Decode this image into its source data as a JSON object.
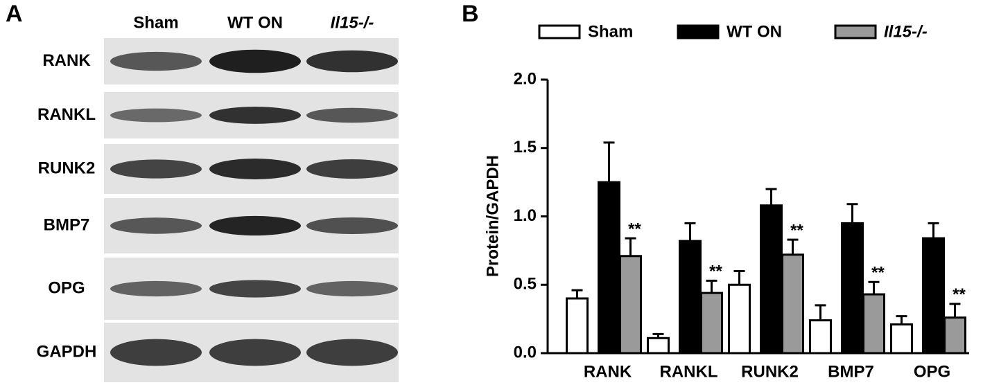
{
  "blot": {
    "panel_label": "A",
    "lanes": [
      "Sham",
      "WT ON",
      "Il15-/-"
    ],
    "rows": [
      "RANK",
      "RANKL",
      "RUNK2",
      "BMP7",
      "OPG",
      "GAPDH"
    ]
  },
  "chart_data": {
    "type": "bar",
    "panel_label": "B",
    "y_label": "Protein/GAPDH",
    "categories": [
      "RANK",
      "RANKL",
      "RUNK2",
      "BMP7",
      "OPG"
    ],
    "series": [
      {
        "name": "Sham",
        "color": "#ffffff",
        "values": [
          0.4,
          0.11,
          0.5,
          0.24,
          0.21
        ],
        "errors": [
          0.06,
          0.03,
          0.1,
          0.11,
          0.06
        ]
      },
      {
        "name": "WT ON",
        "color": "#000000",
        "values": [
          1.25,
          0.82,
          1.08,
          0.95,
          0.84
        ],
        "errors": [
          0.29,
          0.13,
          0.12,
          0.14,
          0.11
        ]
      },
      {
        "name": "Il15-/-",
        "color": "#9a9a9a",
        "values": [
          0.71,
          0.44,
          0.72,
          0.43,
          0.26
        ],
        "errors": [
          0.13,
          0.09,
          0.11,
          0.09,
          0.1
        ]
      }
    ],
    "significance": [
      "**",
      "**",
      "**",
      "**",
      "**"
    ],
    "ylim": [
      0,
      2.0
    ],
    "yticks": [
      {
        "value": 0,
        "label": "0.0"
      },
      {
        "value": 0.5,
        "label": "0.5"
      },
      {
        "value": 1.0,
        "label": "1.0"
      },
      {
        "value": 1.5,
        "label": "1.5"
      },
      {
        "value": 2.0,
        "label": "2.0"
      }
    ]
  }
}
